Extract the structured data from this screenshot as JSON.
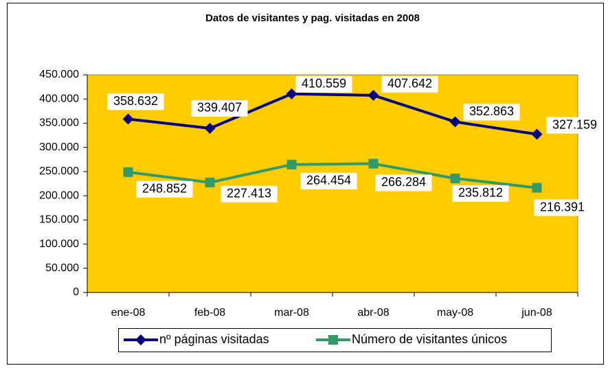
{
  "chart_data": {
    "type": "line",
    "title": "Datos de visitantes y pag. visitadas en 2008",
    "categories": [
      "ene-08",
      "feb-08",
      "mar-08",
      "abr-08",
      "may-08",
      "jun-08"
    ],
    "series": [
      {
        "name": "nº páginas visitadas",
        "color": "#000080",
        "marker": "diamond",
        "values": [
          358632,
          339407,
          410559,
          407642,
          352863,
          327159
        ],
        "value_labels": [
          "358.632",
          "339.407",
          "410.559",
          "407.642",
          "352.863",
          "327.159"
        ]
      },
      {
        "name": "Número de visitantes únicos",
        "color": "#339966",
        "marker": "square",
        "values": [
          248852,
          227413,
          264454,
          266284,
          235812,
          216391
        ],
        "value_labels": [
          "248.852",
          "227.413",
          "264.454",
          "266.284",
          "235.812",
          "216.391"
        ]
      }
    ],
    "ylim": [
      0,
      450000
    ],
    "yticks": [
      0,
      {
        "value": 50000,
        "label": "50.000"
      },
      {
        "value": 100000,
        "label": "100.000"
      },
      {
        "value": 150000,
        "label": "150.000"
      },
      {
        "value": 200000,
        "label": "200.000"
      },
      {
        "value": 250000,
        "label": "250.000"
      },
      {
        "value": 300000,
        "label": "300.000"
      },
      {
        "value": 350000,
        "label": "350.000"
      },
      {
        "value": 400000,
        "label": "400.000"
      },
      {
        "value": 450000,
        "label": "450.000"
      }
    ],
    "grid": false,
    "plot_background": "#FFCC00",
    "legend": "bottom"
  }
}
